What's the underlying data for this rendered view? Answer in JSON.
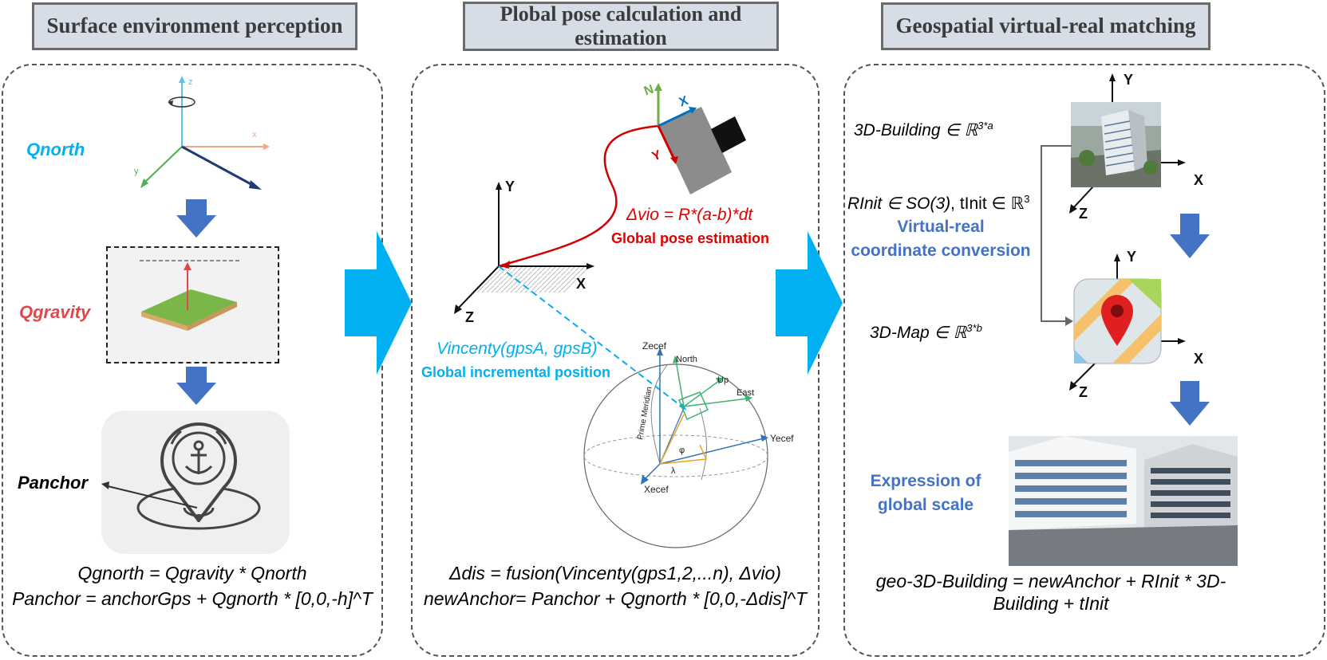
{
  "titles": {
    "left": "Surface environment perception",
    "middle_line1": "Plobal pose calculation and",
    "middle_line2": "estimation",
    "right": "Geospatial virtual-real matching"
  },
  "left": {
    "qnorth": "Qnorth",
    "qgravity": "Qgravity",
    "panchor": "Panchor",
    "axis_z": "z",
    "axis_x": "x",
    "axis_y": "y",
    "formula1": "Qgnorth = Qgravity * Qnorth",
    "formula2": "Panchor = anchorGps + Qgnorth * [0,0,-h]^T"
  },
  "middle": {
    "axis_Y": "Y",
    "axis_X": "X",
    "axis_Z": "Z",
    "cam_N": "N",
    "cam_X": "X",
    "cam_Y": "Y",
    "dvio": "Δvio = R*(a-b)*dt",
    "global_pose": "Global pose estimation",
    "vincenty": "Vincenty(gpsA, gpsB)",
    "global_incr": "Global incremental position",
    "globe_z": "Zecef",
    "globe_y": "Yecef",
    "globe_x": "Xecef",
    "north": "North",
    "up": "Up",
    "east": "East",
    "prime_meridian": "Prime Meridian",
    "phi": "φ",
    "lambda": "λ",
    "formula1": "Δdis = fusion(Vincenty(gps1,2,...n), Δvio)",
    "formula2": "newAnchor= Panchor + Qgnorth * [0,0,-Δdis]^T"
  },
  "right": {
    "building_label": "3D-Building ∈ ℝ",
    "building_sup": "3*a",
    "rinit_a": "RInit ∈ SO(3)",
    "rinit_b": ", tInit ∈ ℝ",
    "rinit_sup": "3",
    "vr_line1": "Virtual-real",
    "vr_line2": "coordinate conversion",
    "map_label": "3D-Map ∈ ℝ",
    "map_sup": "3*b",
    "expr_line1": "Expression of",
    "expr_line2": "global scale",
    "axis_Y": "Y",
    "axis_X": "X",
    "axis_Z": "Z",
    "formula1": "geo-3D-Building = newAnchor + RInit * 3D-",
    "formula2": "Building + tInit"
  },
  "colors": {
    "cyan": "#00b0f0",
    "red_label": "#e0474c",
    "red": "#e00000",
    "blue_text": "#4472c4",
    "arrow_blue": "#4472c4",
    "title_bg": "#d6dde6"
  }
}
